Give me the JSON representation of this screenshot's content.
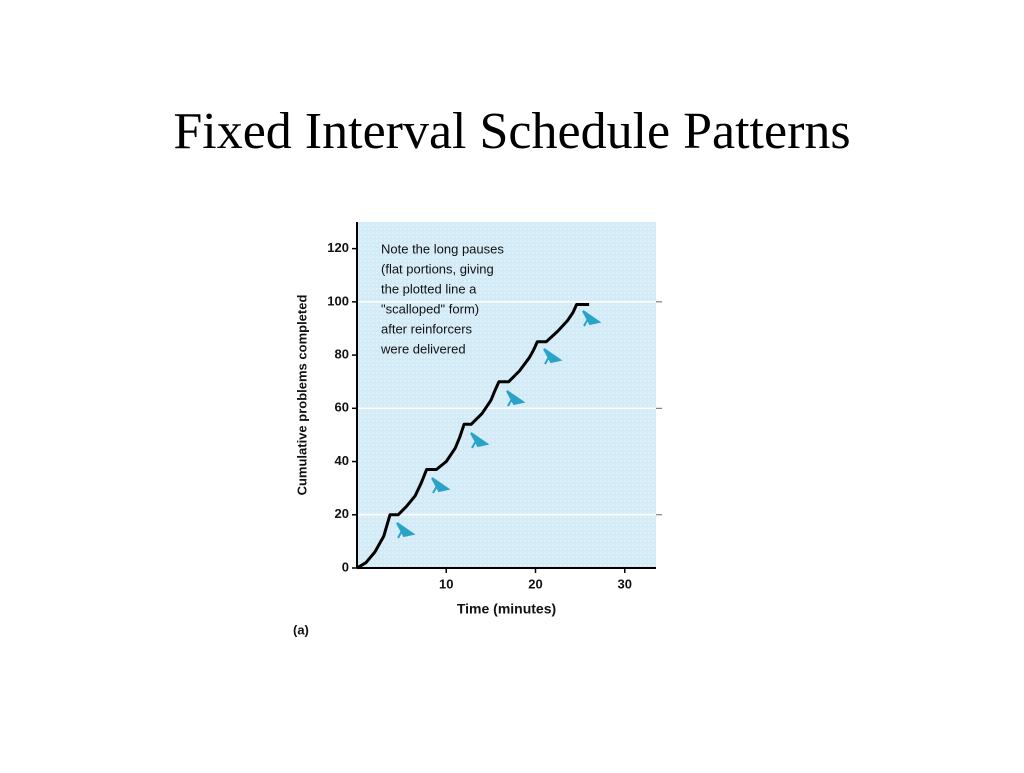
{
  "chart_data": {
    "type": "line",
    "title": "Fixed Interval Schedule Patterns",
    "x_label": "Time (minutes)",
    "y_label": "Cumulative problems completed",
    "panel_label": "(a)",
    "annotation": [
      "Note the long pauses",
      "(flat portions, giving",
      "the plotted line a",
      "\"scalloped\" form)",
      "after reinforcers",
      "were delivered"
    ],
    "x": [
      0,
      1,
      2,
      3,
      3.7,
      4.6,
      5.5,
      6.5,
      7.2,
      7.8,
      8.9,
      10,
      11,
      11.5,
      12,
      12.8,
      14,
      15,
      15.5,
      15.9,
      17,
      18.2,
      19.3,
      19.8,
      20.2,
      21.2,
      22.5,
      23.6,
      24.2,
      24.6,
      26
    ],
    "values": [
      0,
      2,
      6,
      12,
      20,
      20,
      23,
      27,
      32,
      37,
      37,
      40,
      45,
      49,
      54,
      54,
      58,
      63,
      67,
      70,
      70,
      74,
      79,
      82,
      85,
      85,
      89,
      93,
      96,
      99,
      99
    ],
    "color": "#000000",
    "xlim": [
      0,
      33.5
    ],
    "ylim": [
      0,
      130
    ],
    "xticks": [
      10,
      20,
      30
    ],
    "yticks": [
      0,
      20,
      40,
      60,
      80,
      100,
      120
    ],
    "grid_values": [
      20,
      60,
      100
    ],
    "background": "#d3ebf6",
    "marker_color": "#2aa3c9"
  }
}
